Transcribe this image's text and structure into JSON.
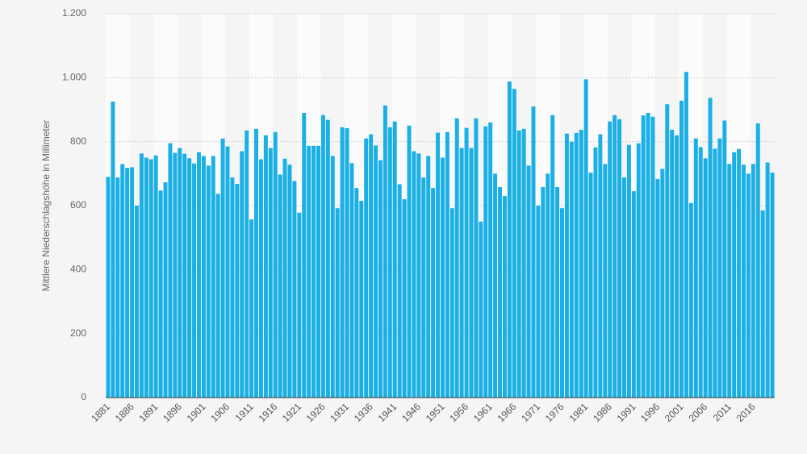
{
  "chart_data": {
    "type": "bar",
    "y_label": "Mittlere Niederschlagshöhe in Millimeter",
    "color": "#1ab0e6",
    "grid": true,
    "ylim": [
      0,
      1200
    ],
    "yticks": [
      0,
      200,
      400,
      600,
      800,
      {
        "value": 1000,
        "label": "1.000"
      },
      {
        "value": 1200,
        "label": "1.200"
      }
    ],
    "categories": [
      "1881",
      null,
      null,
      null,
      null,
      "1886",
      null,
      null,
      null,
      null,
      "1891",
      null,
      null,
      null,
      null,
      "1896",
      null,
      null,
      null,
      null,
      "1901",
      null,
      null,
      null,
      null,
      "1906",
      null,
      null,
      null,
      null,
      "1911",
      null,
      null,
      null,
      null,
      "1916",
      null,
      null,
      null,
      null,
      "1921",
      null,
      null,
      null,
      null,
      "1926",
      null,
      null,
      null,
      null,
      "1931",
      null,
      null,
      null,
      null,
      "1936",
      null,
      null,
      null,
      null,
      "1941",
      null,
      null,
      null,
      null,
      "1946",
      null,
      null,
      null,
      null,
      "1951",
      null,
      null,
      null,
      null,
      "1956",
      null,
      null,
      null,
      null,
      "1961",
      null,
      null,
      null,
      null,
      "1966",
      null,
      null,
      null,
      null,
      "1971",
      null,
      null,
      null,
      null,
      "1976",
      null,
      null,
      null,
      null,
      "1981",
      null,
      null,
      null,
      null,
      "1986",
      null,
      null,
      null,
      null,
      "1991",
      null,
      null,
      null,
      null,
      "1996",
      null,
      null,
      null,
      null,
      "2001",
      null,
      null,
      null,
      null,
      "2006",
      null,
      null,
      null,
      null,
      "2011",
      null,
      null,
      null,
      null,
      "2016",
      null,
      null,
      null,
      null
    ],
    "values": [
      690,
      925,
      688,
      730,
      718,
      720,
      600,
      763,
      750,
      745,
      757,
      647,
      673,
      795,
      765,
      780,
      762,
      748,
      732,
      767,
      755,
      725,
      755,
      637,
      810,
      785,
      688,
      668,
      770,
      835,
      557,
      840,
      745,
      820,
      780,
      830,
      697,
      747,
      728,
      677,
      578,
      890,
      787,
      787,
      787,
      883,
      868,
      755,
      592,
      845,
      842,
      733,
      655,
      615,
      810,
      823,
      788,
      742,
      913,
      845,
      863,
      667,
      620,
      850,
      770,
      763,
      688,
      755,
      655,
      828,
      750,
      830,
      592,
      873,
      780,
      843,
      780,
      873,
      550,
      848,
      860,
      700,
      658,
      630,
      988,
      965,
      835,
      840,
      725,
      910,
      600,
      658,
      700,
      883,
      658,
      592,
      825,
      800,
      827,
      837,
      995,
      703,
      782,
      823,
      730,
      863,
      883,
      870,
      688,
      790,
      645,
      795,
      882,
      890,
      878,
      683,
      715,
      917,
      837,
      820,
      928,
      1018,
      608,
      810,
      783,
      748,
      937,
      778,
      810,
      866,
      730,
      767,
      777,
      728,
      700,
      730,
      857,
      585,
      735,
      703
    ]
  }
}
